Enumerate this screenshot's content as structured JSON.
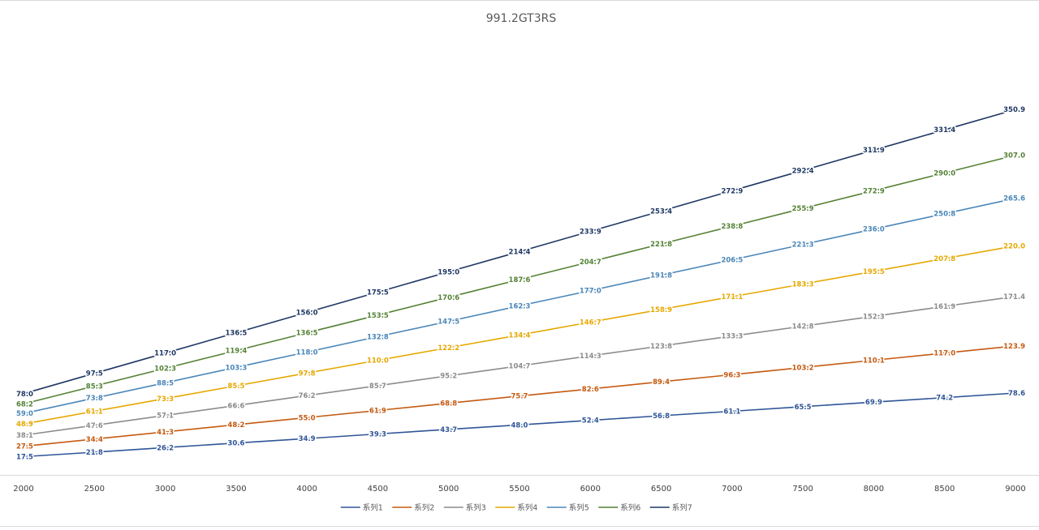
{
  "chart_data": {
    "type": "line",
    "title": "991.2GT3RS",
    "xlabel": "",
    "ylabel": "",
    "x": [
      2000,
      2500,
      3000,
      3500,
      4000,
      4500,
      5000,
      5500,
      6000,
      6500,
      7000,
      7500,
      8000,
      8500,
      9000
    ],
    "ylim": [
      0,
      400
    ],
    "grid": false,
    "legend": "bottom",
    "series": [
      {
        "name": "系列1",
        "color": "#2F5597",
        "values": [
          17.5,
          21.8,
          26.2,
          30.6,
          34.9,
          39.3,
          43.7,
          48.0,
          52.4,
          56.8,
          61.1,
          65.5,
          69.9,
          74.2,
          78.6
        ]
      },
      {
        "name": "系列2",
        "color": "#C55A11",
        "values": [
          27.5,
          34.4,
          41.3,
          48.2,
          55.0,
          61.9,
          68.8,
          75.7,
          82.6,
          89.4,
          96.3,
          103.2,
          110.1,
          117.0,
          123.9
        ]
      },
      {
        "name": "系列3",
        "color": "#8C8C8C",
        "values": [
          38.1,
          47.6,
          57.1,
          66.6,
          76.2,
          85.7,
          95.2,
          104.7,
          114.3,
          123.8,
          133.3,
          142.8,
          152.3,
          161.9,
          171.4
        ]
      },
      {
        "name": "系列4",
        "color": "#E6A800",
        "values": [
          48.9,
          61.1,
          73.3,
          85.5,
          97.8,
          110.0,
          122.2,
          134.4,
          146.7,
          158.9,
          171.1,
          183.3,
          195.5,
          207.8,
          220.0
        ]
      },
      {
        "name": "系列5",
        "color": "#4A86B8",
        "values": [
          59.0,
          73.8,
          88.5,
          103.3,
          118.0,
          132.8,
          147.5,
          162.3,
          177.0,
          191.8,
          206.5,
          221.3,
          236.0,
          250.8,
          265.6
        ]
      },
      {
        "name": "系列6",
        "color": "#548235",
        "values": [
          68.2,
          85.3,
          102.3,
          119.4,
          136.5,
          153.5,
          170.6,
          187.6,
          204.7,
          221.8,
          238.8,
          255.9,
          272.9,
          290.0,
          307.0
        ]
      },
      {
        "name": "系列7",
        "color": "#1F3864",
        "values": [
          78.0,
          97.5,
          117.0,
          136.5,
          156.0,
          175.5,
          195.0,
          214.4,
          233.9,
          253.4,
          272.9,
          292.4,
          311.9,
          331.4,
          350.9
        ]
      }
    ]
  }
}
